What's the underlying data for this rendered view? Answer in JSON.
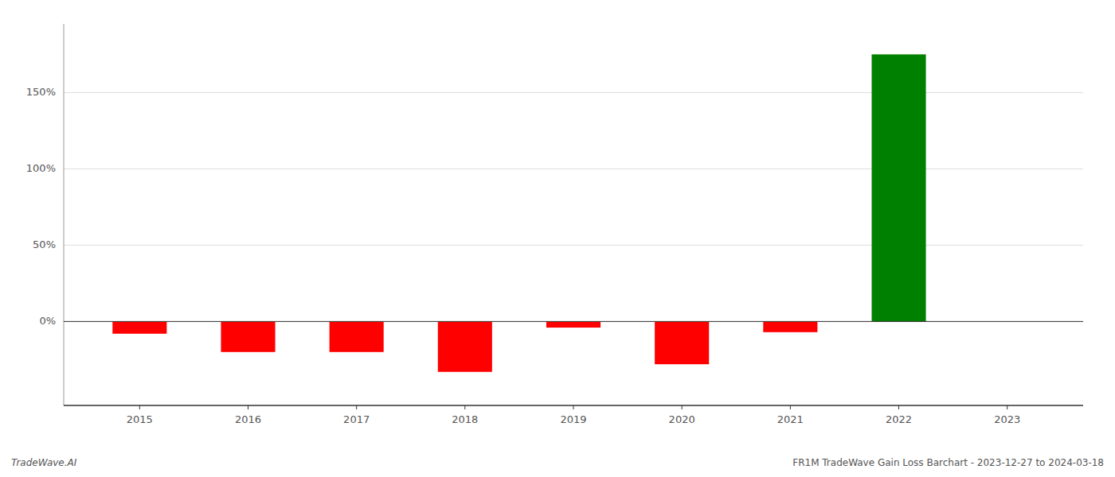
{
  "chart_data": {
    "type": "bar",
    "title": "FR1M TradeWave Gain Loss Barchart - 2023-12-27 to 2024-03-18",
    "annotations": [
      "TradeWave.AI"
    ],
    "x": [
      2015,
      2016,
      2017,
      2018,
      2019,
      2020,
      2021,
      2022,
      2023
    ],
    "values": [
      -0.08,
      -0.2,
      -0.2,
      -0.33,
      -0.04,
      -0.28,
      -0.07,
      1.75,
      0.0
    ],
    "colors": [
      "#ff0000",
      "#ff0000",
      "#ff0000",
      "#ff0000",
      "#ff0000",
      "#ff0000",
      "#ff0000",
      "#008000",
      null
    ],
    "xlim": [
      2014.3,
      2023.7
    ],
    "xticks": [
      2015,
      2016,
      2017,
      2018,
      2019,
      2020,
      2021,
      2022,
      2023
    ],
    "ylim": [
      -0.55,
      1.95
    ],
    "yticks": [
      {
        "value": 0.0,
        "label": "0%"
      },
      {
        "value": 0.5,
        "label": "50%"
      },
      {
        "value": 1.0,
        "label": "100%"
      },
      {
        "value": 1.5,
        "label": "150%"
      }
    ],
    "grid": true
  }
}
